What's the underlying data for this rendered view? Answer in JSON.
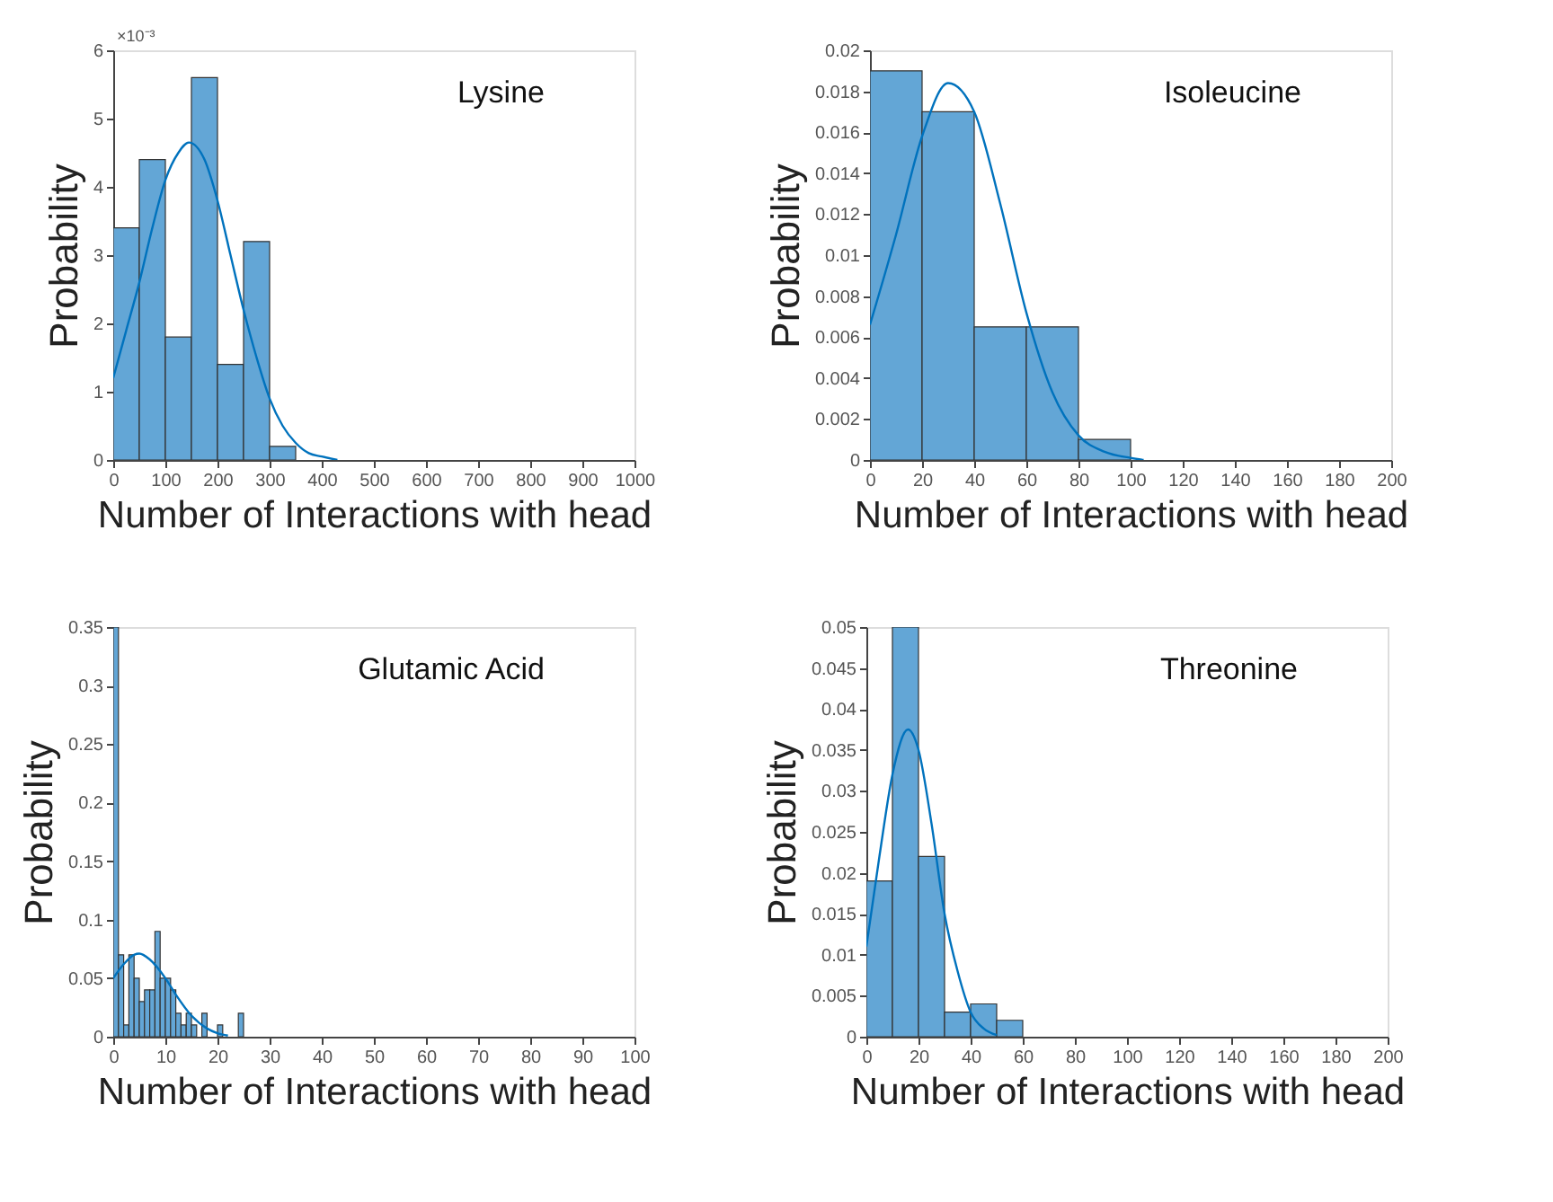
{
  "chart_data": [
    {
      "type": "histogram",
      "title": "Lysine",
      "xlabel": "Number of Interactions with head",
      "ylabel": "Probability",
      "color": "#63a6d6",
      "bins": [
        0,
        50,
        100,
        150,
        200,
        250,
        300,
        350
      ],
      "values": [
        3.4,
        4.4,
        1.8,
        5.6,
        1.4,
        3.2,
        0.2
      ],
      "series": [
        {
          "type": "line",
          "color": "#0072bd",
          "x": [
            0,
            25,
            50,
            75,
            100,
            125,
            145,
            175,
            200,
            225,
            250,
            275,
            300,
            325,
            350,
            375,
            400,
            430
          ],
          "values": [
            1.2,
            1.9,
            2.6,
            3.4,
            4.1,
            4.5,
            4.65,
            4.4,
            3.8,
            3.0,
            2.2,
            1.5,
            0.9,
            0.5,
            0.25,
            0.1,
            0.05,
            0
          ]
        }
      ],
      "xlim": [
        0,
        1000
      ],
      "xticks": [
        0,
        100,
        200,
        300,
        400,
        500,
        600,
        700,
        800,
        900,
        1000
      ],
      "ylim": [
        0,
        6
      ],
      "yticks": [
        0,
        1,
        2,
        3,
        4,
        5,
        6
      ],
      "annotations": [
        "×10⁻³"
      ],
      "grid": false
    },
    {
      "type": "histogram",
      "title": "Isoleucine",
      "xlabel": "Number of Interactions with head",
      "ylabel": "Probability",
      "color": "#63a6d6",
      "bins": [
        0,
        20,
        40,
        60,
        80,
        100
      ],
      "values": [
        0.019,
        0.017,
        0.0065,
        0.0065,
        0.001
      ],
      "series": [
        {
          "type": "line",
          "color": "#0072bd",
          "x": [
            0,
            10,
            20,
            30,
            40,
            50,
            60,
            70,
            80,
            90,
            100,
            105
          ],
          "values": [
            0.0066,
            0.011,
            0.0158,
            0.0184,
            0.017,
            0.0125,
            0.0072,
            0.0033,
            0.0012,
            0.0004,
            0.0001,
            0
          ]
        }
      ],
      "xlim": [
        0,
        200
      ],
      "xticks": [
        0,
        20,
        40,
        60,
        80,
        100,
        120,
        140,
        160,
        180,
        200
      ],
      "ylim": [
        0,
        0.02
      ],
      "yticks": [
        0,
        0.002,
        0.004,
        0.006,
        0.008,
        0.01,
        0.012,
        0.014,
        0.016,
        0.018,
        0.02
      ],
      "grid": false
    },
    {
      "type": "histogram",
      "title": "Glutamic Acid",
      "xlabel": "Number of Interactions with head",
      "ylabel": "Probability",
      "color": "#63a6d6",
      "bins": [
        0,
        1,
        2,
        3,
        4,
        5,
        6,
        7,
        8,
        9,
        10,
        11,
        12,
        13,
        14,
        15,
        16,
        17,
        18,
        19,
        20,
        21,
        22,
        23,
        24,
        25
      ],
      "values": [
        0.35,
        0.07,
        0.01,
        0.07,
        0.05,
        0.03,
        0.04,
        0.04,
        0.09,
        0.05,
        0.05,
        0.04,
        0.02,
        0.01,
        0.02,
        0.01,
        0,
        0.02,
        0,
        0,
        0.01,
        0,
        0,
        0,
        0.02
      ],
      "series": [
        {
          "type": "line",
          "color": "#0072bd",
          "x": [
            0,
            2,
            4,
            5,
            7,
            10,
            12,
            15,
            18,
            20,
            22
          ],
          "values": [
            0.05,
            0.062,
            0.07,
            0.071,
            0.066,
            0.05,
            0.036,
            0.018,
            0.007,
            0.003,
            0.001
          ]
        }
      ],
      "xlim": [
        0,
        100
      ],
      "xticks": [
        0,
        10,
        20,
        30,
        40,
        50,
        60,
        70,
        80,
        90,
        100
      ],
      "ylim": [
        0,
        0.35
      ],
      "yticks": [
        0,
        0.05,
        0.1,
        0.15,
        0.2,
        0.25,
        0.3,
        0.35
      ],
      "grid": false
    },
    {
      "type": "histogram",
      "title": "Threonine",
      "xlabel": "Number of Interactions with head",
      "ylabel": "Probability",
      "color": "#63a6d6",
      "bins": [
        0,
        10,
        20,
        30,
        40,
        50,
        60
      ],
      "values": [
        0.019,
        0.05,
        0.022,
        0.003,
        0.004,
        0.002
      ],
      "series": [
        {
          "type": "line",
          "color": "#0072bd",
          "x": [
            0,
            5,
            10,
            16,
            20,
            25,
            30,
            35,
            40,
            45,
            50
          ],
          "values": [
            0.011,
            0.022,
            0.032,
            0.0375,
            0.035,
            0.026,
            0.015,
            0.008,
            0.003,
            0.001,
            0.0002
          ]
        }
      ],
      "xlim": [
        0,
        200
      ],
      "xticks": [
        0,
        20,
        40,
        60,
        80,
        100,
        120,
        140,
        160,
        180,
        200
      ],
      "ylim": [
        0,
        0.05
      ],
      "yticks": [
        0,
        0.005,
        0.01,
        0.015,
        0.02,
        0.025,
        0.03,
        0.035,
        0.04,
        0.045,
        0.05
      ],
      "grid": false
    }
  ]
}
